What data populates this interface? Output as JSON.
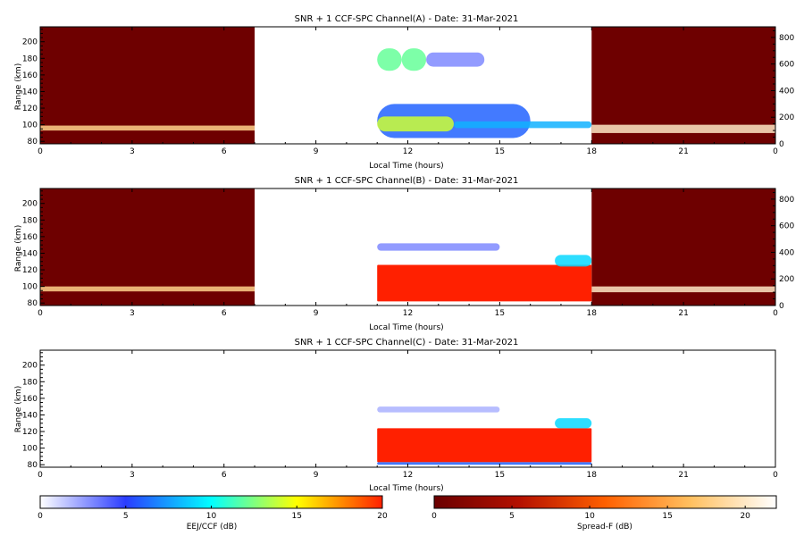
{
  "chart_data": [
    {
      "type": "heatmap",
      "title": "SNR + 1 CCF-SPC Channel(A) - Date: 31-Mar-2021",
      "xlabel": "Local Time (hours)",
      "ylabel": "Range (km)",
      "xlim": [
        0,
        24
      ],
      "ylim": [
        77,
        218
      ],
      "xticks": [
        "0",
        "3",
        "6",
        "9",
        "12",
        "15",
        "18",
        "21",
        "0"
      ],
      "yticks": [
        "80",
        "100",
        "120",
        "140",
        "160",
        "180",
        "200"
      ],
      "right_axis": {
        "ylim": [
          0,
          880
        ],
        "ticks": [
          "0",
          "200",
          "400",
          "600",
          "800"
        ]
      },
      "no_data_intervals": [
        [
          7,
          11
        ]
      ],
      "spread_f_intervals": [
        [
          0,
          7
        ],
        [
          18,
          24
        ]
      ],
      "eej_ccf_blobs": [
        {
          "x": [
            11.0,
            11.8
          ],
          "y": [
            165,
            192
          ],
          "dB": 12
        },
        {
          "x": [
            11.8,
            12.6
          ],
          "y": [
            165,
            192
          ],
          "dB": 12
        },
        {
          "x": [
            12.6,
            14.5
          ],
          "y": [
            170,
            187
          ],
          "dB": 3
        },
        {
          "x": [
            11.0,
            16.0
          ],
          "y": [
            84,
            125
          ],
          "dB": 6
        },
        {
          "x": [
            11.0,
            13.5
          ],
          "y": [
            92,
            110
          ],
          "dB": 14
        },
        {
          "x": [
            13.5,
            18.0
          ],
          "y": [
            96,
            104
          ],
          "dB": 8
        }
      ],
      "spread_f_bands": [
        {
          "x": [
            0,
            7
          ],
          "y": [
            93,
            99
          ],
          "dB": 18
        },
        {
          "x": [
            18,
            24
          ],
          "y": [
            90,
            100
          ],
          "dB": 20
        }
      ]
    },
    {
      "type": "heatmap",
      "title": "SNR + 1 CCF-SPC Channel(B) - Date: 31-Mar-2021",
      "xlabel": "Local Time (hours)",
      "ylabel": "Range (km)",
      "xlim": [
        0,
        24
      ],
      "ylim": [
        77,
        218
      ],
      "xticks": [
        "0",
        "3",
        "6",
        "9",
        "12",
        "15",
        "18",
        "21",
        "0"
      ],
      "yticks": [
        "80",
        "100",
        "120",
        "140",
        "160",
        "180",
        "200"
      ],
      "right_axis": {
        "ylim": [
          0,
          880
        ],
        "ticks": [
          "0",
          "200",
          "400",
          "600",
          "800"
        ]
      },
      "no_data_intervals": [
        [
          7,
          11
        ]
      ],
      "spread_f_intervals": [
        [
          0,
          7
        ],
        [
          18,
          24
        ]
      ],
      "eej_ccf_blobs": [
        {
          "x": [
            11.0,
            18.0
          ],
          "y": [
            82,
            126
          ],
          "dB": 20
        },
        {
          "x": [
            11.0,
            15.0
          ],
          "y": [
            143,
            152
          ],
          "dB": 3
        },
        {
          "x": [
            16.8,
            18.0
          ],
          "y": [
            124,
            138
          ],
          "dB": 9
        }
      ],
      "spread_f_bands": [
        {
          "x": [
            0,
            7
          ],
          "y": [
            94,
            100
          ],
          "dB": 18
        },
        {
          "x": [
            18,
            24
          ],
          "y": [
            93,
            100
          ],
          "dB": 20
        }
      ]
    },
    {
      "type": "heatmap",
      "title": "SNR + 1 CCF-SPC Channel(C) - Date: 31-Mar-2021",
      "xlabel": "Local Time (hours)",
      "ylabel": "Range (km)",
      "xlim": [
        0,
        24
      ],
      "ylim": [
        77,
        218
      ],
      "xticks": [
        "0",
        "3",
        "6",
        "9",
        "12",
        "15",
        "18",
        "21",
        "0"
      ],
      "yticks": [
        "80",
        "100",
        "120",
        "140",
        "160",
        "180",
        "200"
      ],
      "right_axis": null,
      "no_data_intervals": [
        [
          0,
          11
        ]
      ],
      "spread_f_intervals": [],
      "eej_ccf_blobs": [
        {
          "x": [
            11.0,
            18.0
          ],
          "y": [
            83,
            124
          ],
          "dB": 20
        },
        {
          "x": [
            11.0,
            15.0
          ],
          "y": [
            143,
            150
          ],
          "dB": 2
        },
        {
          "x": [
            16.8,
            18.0
          ],
          "y": [
            124,
            136
          ],
          "dB": 9
        },
        {
          "x": [
            11.0,
            18.0
          ],
          "y": [
            80,
            83
          ],
          "dB": 6
        }
      ],
      "spread_f_bands": []
    }
  ],
  "colorbars": [
    {
      "label": "EEJ/CCF (dB)",
      "range": [
        0,
        20
      ],
      "ticks": [
        "0",
        "5",
        "10",
        "15",
        "20"
      ],
      "colors": [
        "#ffffff",
        "#2a3cff",
        "#00ffff",
        "#ffff00",
        "#ff2000"
      ]
    },
    {
      "label": "Spread-F (dB)",
      "range": [
        0,
        22
      ],
      "ticks": [
        "0",
        "5",
        "10",
        "15",
        "20"
      ],
      "colors": [
        "#6a0000",
        "#b41000",
        "#ff6000",
        "#ffc060",
        "#ffffff"
      ]
    }
  ],
  "colors": {
    "spread_f_bg": "#6e0000",
    "frame": "#000000"
  }
}
